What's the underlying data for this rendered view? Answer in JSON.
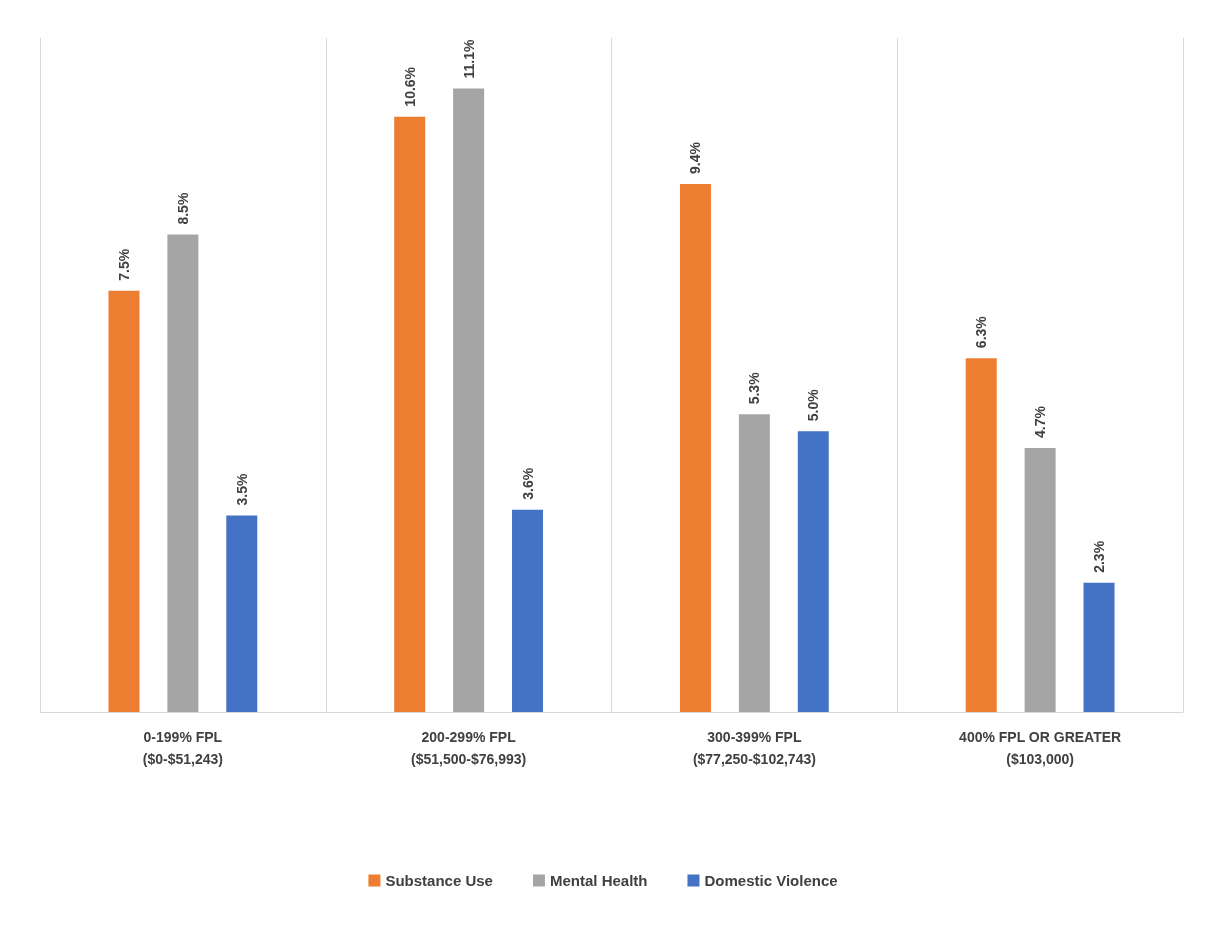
{
  "chart_data": {
    "type": "bar",
    "categories": [
      "0-199% FPL\n($0-$51,243)",
      "200-299% FPL\n($51,500-$76,993)",
      "300-399% FPL\n($77,250-$102,743)",
      "400% FPL OR GREATER\n($103,000)"
    ],
    "series": [
      {
        "name": "Substance Use",
        "color": "#ed7d31",
        "values": [
          7.5,
          10.6,
          9.4,
          6.3
        ],
        "value_labels": [
          "7.5%",
          "10.6%",
          "9.4%",
          "6.3%"
        ]
      },
      {
        "name": "Mental Health",
        "color": "#a5a5a5",
        "values": [
          8.5,
          11.1,
          5.3,
          4.7
        ],
        "value_labels": [
          "8.5%",
          "11.1%",
          "5.3%",
          "4.7%"
        ]
      },
      {
        "name": "Domestic Violence",
        "color": "#4472c4",
        "values": [
          3.5,
          3.6,
          5.0,
          2.3
        ],
        "value_labels": [
          "3.5%",
          "3.6%",
          "5.0%",
          "2.3%"
        ]
      }
    ],
    "grid": "x",
    "legend": "bottom"
  }
}
